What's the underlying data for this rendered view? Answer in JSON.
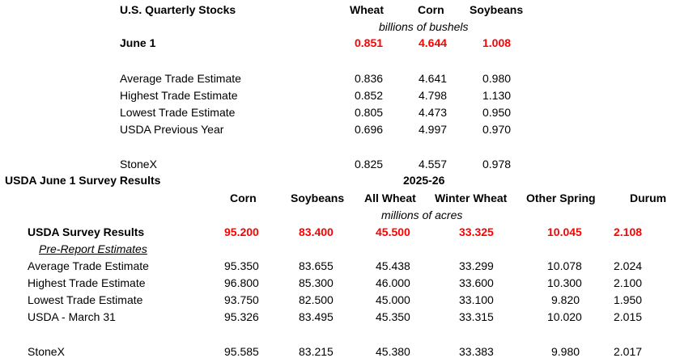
{
  "stocks": {
    "title": "U.S. Quarterly Stocks",
    "columns": [
      "Wheat",
      "Corn",
      "Soybeans"
    ],
    "units": "billions of bushels",
    "rows": [
      {
        "label": "June 1",
        "values": [
          "0.851",
          "4.644",
          "1.008"
        ],
        "highlight": true
      },
      {
        "label": "Average Trade Estimate",
        "values": [
          "0.836",
          "4.641",
          "0.980"
        ]
      },
      {
        "label": "Highest Trade Estimate",
        "values": [
          "0.852",
          "4.798",
          "1.130"
        ]
      },
      {
        "label": "Lowest Trade Estimate",
        "values": [
          "0.805",
          "4.473",
          "0.950"
        ]
      },
      {
        "label": "USDA Previous Year",
        "values": [
          "0.696",
          "4.997",
          "0.970"
        ]
      },
      {
        "label": "StoneX",
        "values": [
          "0.825",
          "4.557",
          "0.978"
        ]
      }
    ]
  },
  "survey": {
    "title": "USDA June 1 Survey Results",
    "year": "2025-26",
    "columns": [
      "Corn",
      "Soybeans",
      "All Wheat",
      "Winter Wheat",
      "Other Spring",
      "Durum"
    ],
    "units": "millions of acres",
    "results": {
      "label": "USDA Survey Results",
      "values": [
        "95.200",
        "83.400",
        "45.500",
        "33.325",
        "10.045",
        "2.108"
      ]
    },
    "pre_report_label": "Pre-Report Estimates",
    "rows": [
      {
        "label": "Average Trade Estimate",
        "values": [
          "95.350",
          "83.655",
          "45.438",
          "33.299",
          "10.078",
          "2.024"
        ]
      },
      {
        "label": "Highest Trade Estimate",
        "values": [
          "96.800",
          "85.300",
          "46.000",
          "33.600",
          "10.300",
          "2.100"
        ]
      },
      {
        "label": "Lowest Trade Estimate",
        "values": [
          "93.750",
          "82.500",
          "45.000",
          "33.100",
          "9.820",
          "1.950"
        ]
      },
      {
        "label": "USDA - March 31",
        "values": [
          "95.326",
          "83.495",
          "45.350",
          "33.315",
          "10.020",
          "2.015"
        ]
      },
      {
        "label": "StoneX",
        "values": [
          "95.585",
          "83.215",
          "45.380",
          "33.383",
          "9.980",
          "2.017"
        ]
      }
    ]
  },
  "colors": {
    "highlight": "#ff0000",
    "text": "#000000"
  }
}
